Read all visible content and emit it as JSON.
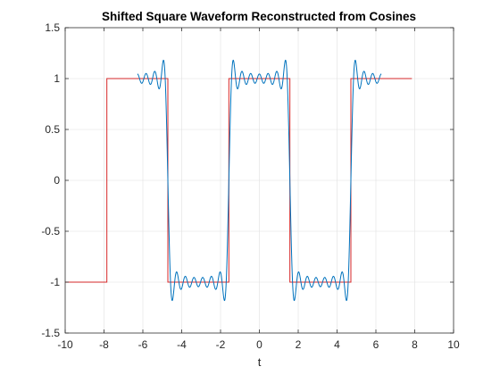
{
  "chart_data": {
    "type": "line",
    "title": "Shifted Square Waveform Reconstructed from Cosines",
    "xlabel": "t",
    "ylabel": "",
    "xlim": [
      -10,
      10
    ],
    "ylim": [
      -1.5,
      1.5
    ],
    "xticks": [
      -10,
      -8,
      -6,
      -4,
      -2,
      0,
      2,
      4,
      6,
      8,
      10
    ],
    "yticks": [
      -1.5,
      -1,
      -0.5,
      0,
      0.5,
      1,
      1.5
    ],
    "xtick_labels": [
      "-10",
      "-8",
      "-6",
      "-4",
      "-2",
      "0",
      "2",
      "4",
      "6",
      "8",
      "10"
    ],
    "ytick_labels": [
      "-1.5",
      "-1",
      "-0.5",
      "0",
      "0.5",
      "1",
      "1.5"
    ],
    "grid": true,
    "series": [
      {
        "color": "#d62728",
        "style": "step",
        "x": [
          -10,
          -7.854,
          -7.854,
          -4.712,
          -4.712,
          -1.571,
          -1.571,
          1.571,
          1.571,
          4.712,
          4.712,
          7.854
        ],
        "y": [
          -1,
          -1,
          1,
          1,
          -1,
          -1,
          1,
          1,
          -1,
          -1,
          1,
          1
        ]
      },
      {
        "color": "#0072bd",
        "style": "fourier-cosine-partial-sum",
        "x_range": [
          -6.283,
          6.283
        ],
        "period": 6.283,
        "harmonics": [
          1,
          3,
          5,
          7,
          9,
          11,
          13
        ],
        "coefficients": [
          1.2732,
          -0.4244,
          0.2546,
          -0.1819,
          0.1415,
          -0.1157,
          0.0979
        ]
      }
    ]
  }
}
